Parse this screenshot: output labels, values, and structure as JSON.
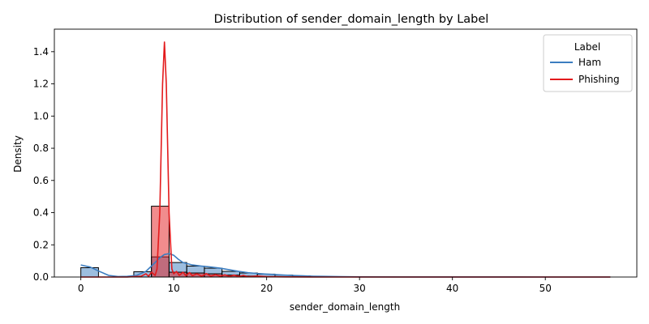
{
  "chart_data": {
    "type": "bar",
    "title": "Distribution of sender_domain_length by Label",
    "xlabel": "sender_domain_length",
    "ylabel": "Density",
    "xlim": [
      -2.85,
      59.85
    ],
    "ylim": [
      0,
      1.54
    ],
    "xticks": [
      0,
      10,
      20,
      30,
      40,
      50
    ],
    "yticks": [
      0.0,
      0.2,
      0.4,
      0.6,
      0.8,
      1.0,
      1.2,
      1.4
    ],
    "ytick_labels": [
      "0.0",
      "0.2",
      "0.4",
      "0.6",
      "0.8",
      "1.0",
      "1.2",
      "1.4"
    ],
    "grid": false,
    "legend": {
      "title": "Label",
      "placement": "top-right"
    },
    "bin_width": 1.9,
    "series": [
      {
        "name": "Ham",
        "color": "#3b7dc0",
        "bins": [
          [
            0.0,
            0.058
          ],
          [
            5.7,
            0.033
          ],
          [
            7.6,
            0.125
          ],
          [
            9.5,
            0.09
          ],
          [
            11.4,
            0.068
          ],
          [
            13.3,
            0.055
          ],
          [
            15.2,
            0.035
          ],
          [
            17.1,
            0.025
          ],
          [
            19.0,
            0.018
          ],
          [
            20.9,
            0.012
          ],
          [
            22.8,
            0.007
          ],
          [
            24.7,
            0.004
          ],
          [
            26.6,
            0.002
          ]
        ],
        "kde": [
          [
            0,
            0.075
          ],
          [
            1,
            0.062
          ],
          [
            2,
            0.035
          ],
          [
            3,
            0.01
          ],
          [
            4,
            0.003
          ],
          [
            5,
            0.004
          ],
          [
            6,
            0.01
          ],
          [
            7,
            0.035
          ],
          [
            8,
            0.09
          ],
          [
            8.5,
            0.12
          ],
          [
            9,
            0.14
          ],
          [
            9.5,
            0.145
          ],
          [
            10,
            0.135
          ],
          [
            10.5,
            0.11
          ],
          [
            11,
            0.09
          ],
          [
            12,
            0.075
          ],
          [
            13,
            0.068
          ],
          [
            14,
            0.062
          ],
          [
            15,
            0.055
          ],
          [
            16,
            0.045
          ],
          [
            17,
            0.035
          ],
          [
            18,
            0.027
          ],
          [
            19,
            0.022
          ],
          [
            20,
            0.018
          ],
          [
            21,
            0.015
          ],
          [
            22,
            0.012
          ],
          [
            23,
            0.009
          ],
          [
            24,
            0.007
          ],
          [
            25,
            0.005
          ],
          [
            26,
            0.004
          ],
          [
            28,
            0.002
          ],
          [
            30,
            0.001
          ],
          [
            35,
            0.0005
          ],
          [
            40,
            0.0002
          ],
          [
            45,
            0.0001
          ],
          [
            50,
            0.0
          ],
          [
            57,
            0.0
          ]
        ]
      },
      {
        "name": "Phishing",
        "color": "#e31a1c",
        "bins": [
          [
            7.6,
            0.44
          ],
          [
            9.5,
            0.03
          ],
          [
            11.4,
            0.025
          ],
          [
            13.3,
            0.02
          ],
          [
            15.2,
            0.012
          ],
          [
            17.1,
            0.006
          ],
          [
            19.0,
            0.003
          ]
        ],
        "kde": [
          [
            0,
            0.0
          ],
          [
            5,
            0.0
          ],
          [
            6.5,
            0.005
          ],
          [
            7,
            0.02
          ],
          [
            7.3,
            0.005
          ],
          [
            7.6,
            0.03
          ],
          [
            8,
            0.01
          ],
          [
            8.2,
            0.05
          ],
          [
            8.5,
            0.4
          ],
          [
            8.8,
            1.2
          ],
          [
            9.0,
            1.46
          ],
          [
            9.2,
            1.2
          ],
          [
            9.5,
            0.4
          ],
          [
            9.8,
            0.05
          ],
          [
            10,
            0.02
          ],
          [
            10.3,
            0.035
          ],
          [
            10.6,
            0.01
          ],
          [
            11,
            0.03
          ],
          [
            11.3,
            0.008
          ],
          [
            11.7,
            0.028
          ],
          [
            12,
            0.008
          ],
          [
            12.5,
            0.02
          ],
          [
            13,
            0.005
          ],
          [
            13.5,
            0.022
          ],
          [
            14,
            0.005
          ],
          [
            14.5,
            0.015
          ],
          [
            15,
            0.005
          ],
          [
            15.5,
            0.014
          ],
          [
            16,
            0.004
          ],
          [
            16.5,
            0.012
          ],
          [
            17,
            0.003
          ],
          [
            17.5,
            0.01
          ],
          [
            18,
            0.002
          ],
          [
            19,
            0.006
          ],
          [
            20,
            0.002
          ],
          [
            22,
            0.001
          ],
          [
            25,
            0.0
          ],
          [
            57,
            0.0
          ]
        ]
      }
    ]
  }
}
